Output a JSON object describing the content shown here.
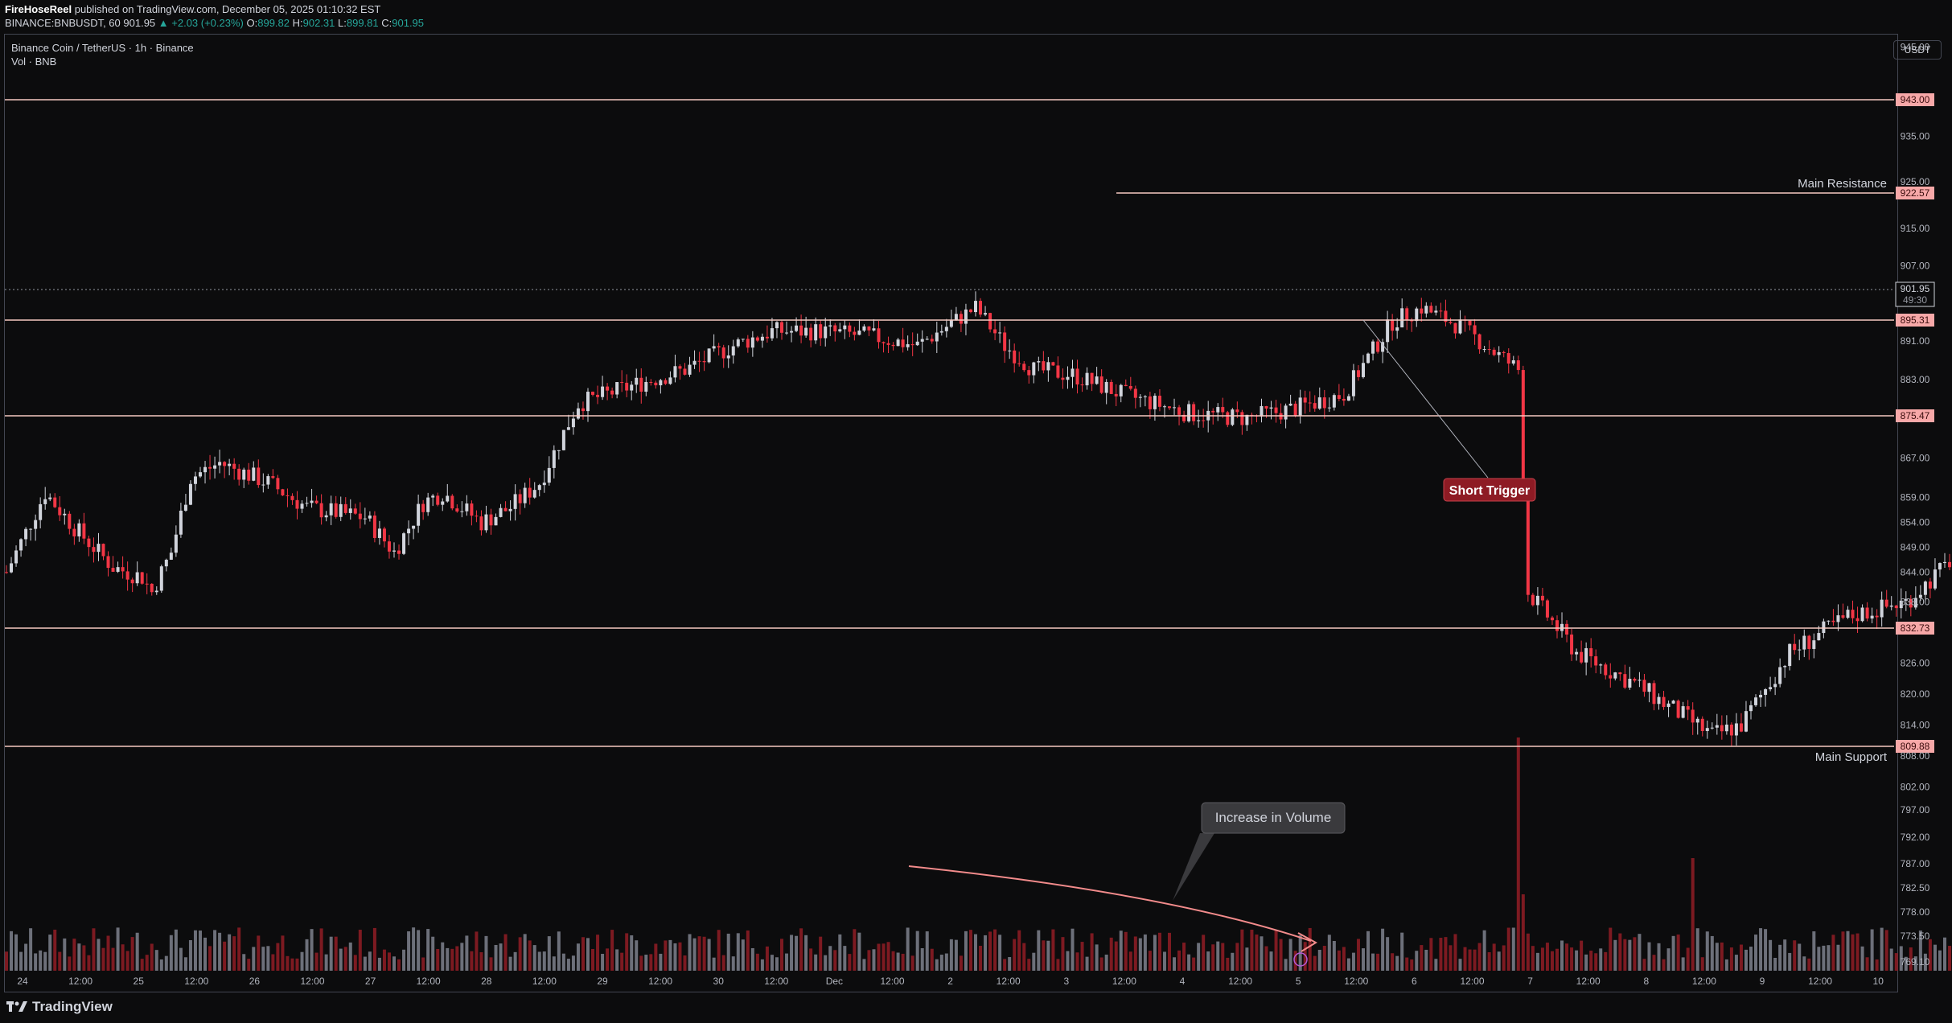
{
  "header": {
    "publisher": "FireHoseReel",
    "published_text": "published on TradingView.com, December 05, 2025 01:10:32 EST",
    "symbol_line": "BINANCE:BNBUSDT, 60",
    "last": "901.95",
    "change": "▲ +2.03 (+0.23%)",
    "o": "899.82",
    "h": "902.31",
    "l": "899.81",
    "c": "901.95"
  },
  "legend": {
    "title": "Binance Coin / TetherUS · 1h · Binance",
    "volume": "Vol · BNB"
  },
  "currency_button": "USDT",
  "footer_brand": "TradingView",
  "colors": {
    "up": "#d1d4dc",
    "down": "#f23645",
    "level": "#f7c9c2",
    "label_bg": "#f7a8a8",
    "short_bg": "#8e1b24"
  },
  "chart_data": {
    "type": "candlestick",
    "symbol": "BNBUSDT",
    "y_axis_ticks": [
      "945.00",
      "935.00",
      "925.00",
      "915.00",
      "907.00",
      "891.00",
      "883.00",
      "867.00",
      "859.00",
      "854.00",
      "849.00",
      "844.00",
      "838.00",
      "826.00",
      "820.00",
      "814.00",
      "808.00",
      "802.00",
      "797.00",
      "792.00",
      "787.00",
      "782.50",
      "778.00",
      "773.50",
      "769.10"
    ],
    "x_axis_ticks": [
      "24",
      "12:00",
      "25",
      "12:00",
      "26",
      "12:00",
      "27",
      "12:00",
      "28",
      "12:00",
      "29",
      "12:00",
      "30",
      "12:00",
      "Dec",
      "12:00",
      "2",
      "12:00",
      "3",
      "12:00",
      "4",
      "12:00",
      "5",
      "12:00",
      "6",
      "12:00",
      "7",
      "12:00",
      "8",
      "12:00",
      "9",
      "12:00",
      "10"
    ],
    "horizontal_levels": [
      {
        "value": "943.00",
        "label": ""
      },
      {
        "value": "922.57",
        "label": "Main Resistance"
      },
      {
        "value": "895.31",
        "label": ""
      },
      {
        "value": "875.47",
        "label": ""
      },
      {
        "value": "832.73",
        "label": ""
      },
      {
        "value": "809.88",
        "label": "Main Support"
      }
    ],
    "current_price": "901.95",
    "countdown": "49:30",
    "annotations": [
      {
        "text": "Short Trigger"
      },
      {
        "text": "Increase in Volume"
      }
    ]
  }
}
